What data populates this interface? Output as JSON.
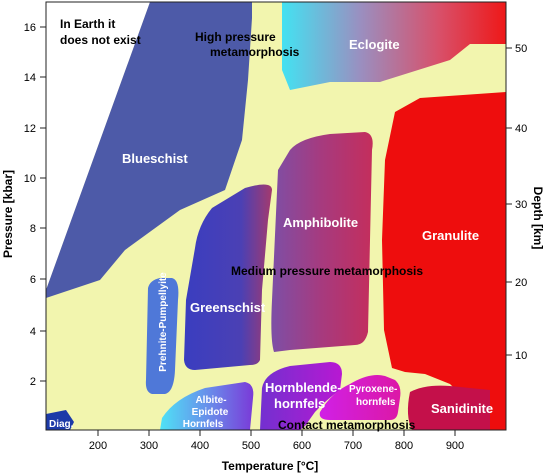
{
  "axes": {
    "x_title": "Temperature [°C]",
    "y_left_title": "Pressure [kbar]",
    "y_right_title": "Depth [km]",
    "x_ticks": [
      "200",
      "300",
      "400",
      "500",
      "600",
      "700",
      "800",
      "900"
    ],
    "y_left_ticks": [
      "2",
      "4",
      "6",
      "8",
      "10",
      "12",
      "14",
      "16"
    ],
    "y_right_ticks": [
      "10",
      "20",
      "30",
      "40",
      "50"
    ]
  },
  "labels": {
    "not_exist_line1": "In Earth it",
    "not_exist_line2": "does not exist",
    "high_pressure_line1": "High pressure",
    "high_pressure_line2": "metamorphosis",
    "medium_pressure": "Medium pressure metamorphosis",
    "contact": "Contact metamorphosis"
  },
  "facies": {
    "blueschist": "Blueschist",
    "eclogite": "Eclogite",
    "amphibolite": "Amphibolite",
    "granulite": "Granulite",
    "greenschist": "Greenschist",
    "prehnite_pumpellyite": "Prehnite-Pumpellyite",
    "albite_epidote_line1": "Albite-",
    "albite_epidote_line2": "Epidote",
    "albite_epidote_line3": "Hornfels",
    "hornblende_line1": "Hornblende-",
    "hornblende_line2": "hornfels",
    "pyroxene_line1": "Pyroxene-",
    "pyroxene_line2": "hornfels",
    "sanidinite": "Sanidinite",
    "diagenesis": "Diag."
  },
  "colors": {
    "background_fill": "#f2f5ae",
    "blueschist": "#4d5aa8",
    "greenschist": "#3b3fb8",
    "granulite": "#ee0d0d",
    "prehnite": "#4f78d8",
    "sanidinite": "#c4104a"
  }
}
